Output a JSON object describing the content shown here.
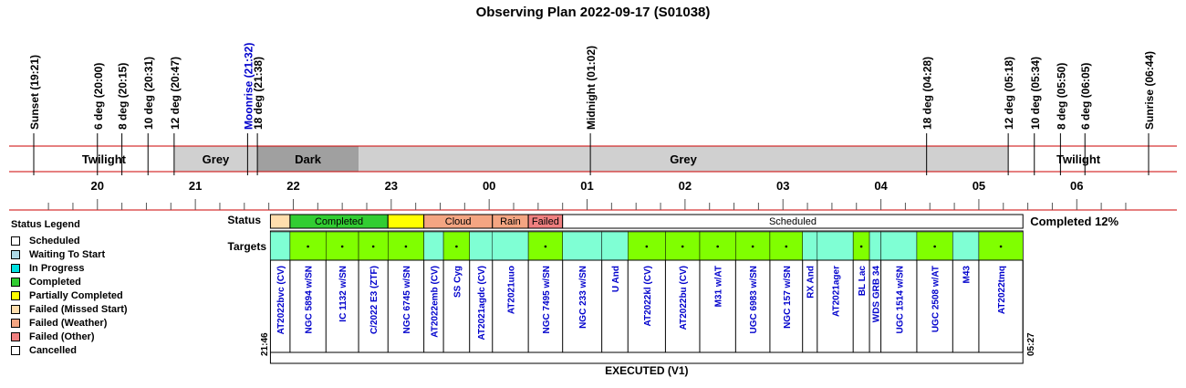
{
  "title": "Observing Plan 2022-09-17 (S01038)",
  "colors": {
    "red_line": "#cc0000",
    "twilight": "#ffffff",
    "grey": "#d0d0d0",
    "dark": "#a0a0a0",
    "event_blue": "#0000cc",
    "target_text": "#0000cc",
    "target_cell": "#7fffd4",
    "target_done": "#80ff00"
  },
  "chart_data": {
    "type": "timeline",
    "time_range": [
      "19:21",
      "06:44"
    ],
    "events": [
      {
        "label": "Sunset (19:21)",
        "time": "19:21"
      },
      {
        "label": "6 deg (20:00)",
        "time": "20:00"
      },
      {
        "label": "8 deg (20:15)",
        "time": "20:15"
      },
      {
        "label": "10 deg (20:31)",
        "time": "20:31"
      },
      {
        "label": "12 deg (20:47)",
        "time": "20:47"
      },
      {
        "label": "Moonrise (21:32)",
        "time": "21:32",
        "color": "blue"
      },
      {
        "label": "18 deg (21:38)",
        "time": "21:38"
      },
      {
        "label": "Midnight (01:02)",
        "time": "01:02"
      },
      {
        "label": "18 deg (04:28)",
        "time": "04:28"
      },
      {
        "label": "12 deg (05:18)",
        "time": "05:18"
      },
      {
        "label": "10 deg (05:34)",
        "time": "05:34"
      },
      {
        "label": "8 deg (05:50)",
        "time": "05:50"
      },
      {
        "label": "6 deg (06:05)",
        "time": "06:05"
      },
      {
        "label": "Sunrise (06:44)",
        "time": "06:44"
      }
    ],
    "sky_phases": [
      {
        "label": "Twilight",
        "start": "19:21",
        "end": "20:47",
        "kind": "twilight"
      },
      {
        "label": "Grey",
        "start": "20:47",
        "end": "21:38",
        "kind": "grey"
      },
      {
        "label": "Dark",
        "start": "21:38",
        "end": "22:40",
        "kind": "dark"
      },
      {
        "label": "Grey",
        "start": "22:40",
        "end": "05:18",
        "kind": "grey"
      },
      {
        "label": "Twilight",
        "start": "05:18",
        "end": "06:44",
        "kind": "twilight"
      }
    ],
    "hour_ticks": [
      "20",
      "21",
      "22",
      "23",
      "00",
      "01",
      "02",
      "03",
      "04",
      "05",
      "06"
    ],
    "status_row": {
      "label": "Status",
      "segments": [
        {
          "label": "",
          "start": "21:46",
          "end": "21:58",
          "status": "Failed (Missed Start)"
        },
        {
          "label": "Completed",
          "start": "21:58",
          "end": "22:58",
          "status": "Completed"
        },
        {
          "label": "",
          "start": "22:58",
          "end": "23:20",
          "status": "Partially Completed"
        },
        {
          "label": "Cloud",
          "start": "23:20",
          "end": "00:02",
          "status": "Failed (Weather)"
        },
        {
          "label": "Rain",
          "start": "00:02",
          "end": "00:24",
          "status": "Failed (Weather)"
        },
        {
          "label": "Failed",
          "start": "00:24",
          "end": "00:45",
          "status": "Failed (Other)"
        },
        {
          "label": "Scheduled",
          "start": "00:45",
          "end": "05:27",
          "status": "Scheduled"
        }
      ],
      "completion_text": "Completed 12%"
    },
    "targets_row": {
      "label": "Targets",
      "start_time": "21:46",
      "end_time": "05:27",
      "footer": "EXECUTED (V1)",
      "targets": [
        {
          "name": "AT2022bvc (CV)",
          "start": "21:46",
          "end": "21:58",
          "done": false
        },
        {
          "name": "NGC 5894 w/SN",
          "start": "21:58",
          "end": "22:20",
          "done": true
        },
        {
          "name": "IC 1132 w/SN",
          "start": "22:20",
          "end": "22:40",
          "done": true
        },
        {
          "name": "C/2022 E3 (ZTF)",
          "start": "22:40",
          "end": "22:58",
          "done": true
        },
        {
          "name": "NGC 6745 w/SN",
          "start": "22:58",
          "end": "23:20",
          "done": true
        },
        {
          "name": "AT2022emb (CV)",
          "start": "23:20",
          "end": "23:32",
          "done": false
        },
        {
          "name": "SS Cyg",
          "start": "23:32",
          "end": "23:48",
          "done": true
        },
        {
          "name": "AT2021agdc (CV)",
          "start": "23:48",
          "end": "00:02",
          "done": false
        },
        {
          "name": "AT2021uuo",
          "start": "00:02",
          "end": "00:24",
          "done": false
        },
        {
          "name": "NGC 7495 w/SN",
          "start": "00:24",
          "end": "00:45",
          "done": true
        },
        {
          "name": "NGC 233 w/SN",
          "start": "00:45",
          "end": "01:09",
          "done": false
        },
        {
          "name": "U And",
          "start": "01:09",
          "end": "01:25",
          "done": false
        },
        {
          "name": "AT2022kl (CV)",
          "start": "01:25",
          "end": "01:48",
          "done": true
        },
        {
          "name": "AT2022bu (CV)",
          "start": "01:48",
          "end": "02:09",
          "done": true
        },
        {
          "name": "M31 w/AT",
          "start": "02:09",
          "end": "02:31",
          "done": true
        },
        {
          "name": "UGC 6983 w/SN",
          "start": "02:31",
          "end": "02:52",
          "done": true
        },
        {
          "name": "NGC 157 w/SN",
          "start": "02:52",
          "end": "03:12",
          "done": true
        },
        {
          "name": "RX And",
          "start": "03:12",
          "end": "03:21",
          "done": false
        },
        {
          "name": "AT2021ager",
          "start": "03:21",
          "end": "03:43",
          "done": false
        },
        {
          "name": "BL Lac",
          "start": "03:43",
          "end": "03:53",
          "done": true
        },
        {
          "name": "WDS GRB 34",
          "start": "03:53",
          "end": "04:00",
          "done": false
        },
        {
          "name": "UGC 1514 w/SN",
          "start": "04:00",
          "end": "04:22",
          "done": false
        },
        {
          "name": "UGC 2508 w/AT",
          "start": "04:22",
          "end": "04:44",
          "done": true
        },
        {
          "name": "M43",
          "start": "04:44",
          "end": "05:00",
          "done": false
        },
        {
          "name": "AT2022tmq",
          "start": "05:00",
          "end": "05:27",
          "done": true
        }
      ]
    }
  },
  "legend": {
    "title": "Status Legend",
    "items": [
      {
        "label": "Scheduled",
        "color": "#ffffff"
      },
      {
        "label": "Waiting To Start",
        "color": "#add8e6"
      },
      {
        "label": "In Progress",
        "color": "#00e0e0"
      },
      {
        "label": "Completed",
        "color": "#32cd32"
      },
      {
        "label": "Partially Completed",
        "color": "#ffff00"
      },
      {
        "label": "Failed (Missed Start)",
        "color": "#ffdead"
      },
      {
        "label": "Failed (Weather)",
        "color": "#f4a582"
      },
      {
        "label": "Failed (Other)",
        "color": "#f08080"
      },
      {
        "label": "Cancelled",
        "color": "#ffffff"
      }
    ]
  }
}
